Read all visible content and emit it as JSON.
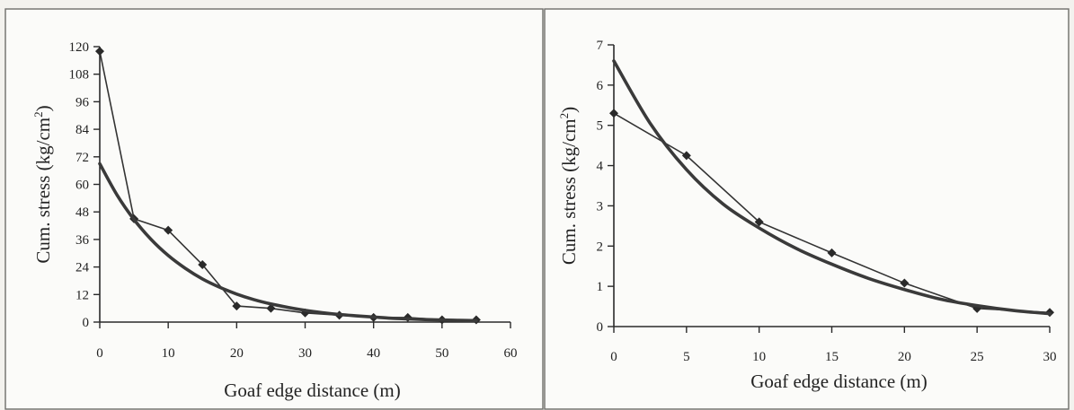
{
  "chart_data": [
    {
      "type": "line",
      "xlabel": "Goaf edge distance (m)",
      "ylabel": "Cum. stress (kg/cm",
      "ylabel_sup": "2",
      "ylabel_close": ")",
      "xlim": [
        0,
        60
      ],
      "ylim": [
        0,
        120
      ],
      "xticks": [
        "0",
        "10",
        "20",
        "30",
        "40",
        "50",
        "60"
      ],
      "yticks": [
        "0",
        "12",
        "24",
        "36",
        "48",
        "60",
        "72",
        "84",
        "96",
        "108",
        "120"
      ],
      "series": [
        {
          "style": "line-with-diamond-markers",
          "x": [
            0,
            5,
            10,
            15,
            20,
            25,
            30,
            35,
            40,
            45,
            50,
            55
          ],
          "y": [
            118,
            45,
            40,
            25,
            7,
            6,
            4,
            3,
            2,
            2,
            1,
            1
          ]
        },
        {
          "style": "thick-smooth-curve",
          "x": [
            0,
            2.5,
            5,
            7.5,
            10,
            12.5,
            15,
            17.5,
            20,
            22.5,
            25,
            27.5,
            30,
            32.5,
            35,
            37.5,
            40,
            42.5,
            45,
            47.5,
            50,
            52.5,
            55
          ],
          "y": [
            69,
            55.5,
            44.7,
            36,
            29,
            23.4,
            18.8,
            15.2,
            12.2,
            9.8,
            7.9,
            6.4,
            5.1,
            4.1,
            3.3,
            2.7,
            2.2,
            1.7,
            1.4,
            1.1,
            0.9,
            0.75,
            0.6
          ]
        }
      ]
    },
    {
      "type": "line",
      "xlabel": "Goaf edge distance (m)",
      "ylabel": "Cum. stress (kg/cm",
      "ylabel_sup": "2",
      "ylabel_close": ")",
      "xlim": [
        0,
        30
      ],
      "ylim": [
        0,
        7
      ],
      "xticks": [
        "0",
        "5",
        "10",
        "15",
        "20",
        "25",
        "30"
      ],
      "yticks": [
        "0",
        "1",
        "2",
        "3",
        "4",
        "5",
        "6",
        "7"
      ],
      "series": [
        {
          "style": "line-with-diamond-markers",
          "x": [
            0,
            5,
            10,
            15,
            20,
            25,
            30
          ],
          "y": [
            5.3,
            4.25,
            2.6,
            1.83,
            1.08,
            0.45,
            0.35
          ]
        },
        {
          "style": "thick-smooth-curve",
          "x": [
            0,
            2.5,
            5,
            7.5,
            10,
            12.5,
            15,
            17.5,
            20,
            22.5,
            25,
            27.5,
            30
          ],
          "y": [
            6.6,
            5.05,
            3.9,
            3.05,
            2.45,
            1.95,
            1.55,
            1.2,
            0.92,
            0.68,
            0.52,
            0.4,
            0.32
          ]
        }
      ]
    }
  ]
}
